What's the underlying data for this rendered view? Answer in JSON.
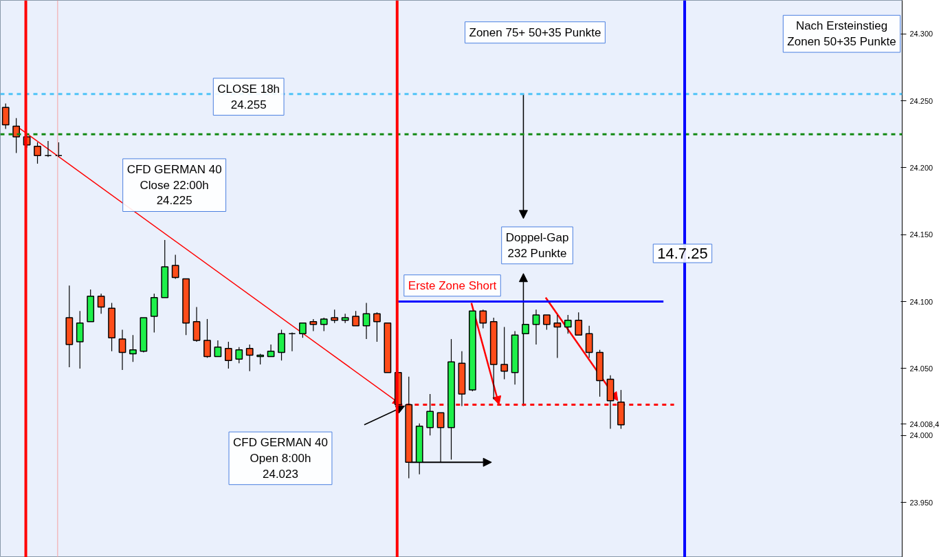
{
  "chart_data": {
    "type": "candlestick",
    "categories": [
      null,
      null,
      null,
      null,
      null,
      null,
      null,
      null,
      null,
      null,
      null,
      null,
      null,
      null,
      null,
      null,
      null,
      null,
      null,
      null,
      null,
      null,
      null,
      null,
      null,
      null,
      null,
      null,
      null,
      null,
      null,
      null,
      null,
      null,
      null,
      null,
      null,
      null,
      null,
      null,
      null,
      null,
      null,
      null,
      null,
      null,
      null,
      null,
      null,
      null,
      null,
      null,
      null,
      null,
      null,
      null,
      null,
      null,
      null,
      null,
      null,
      null,
      null,
      null,
      null,
      null,
      null,
      null,
      null,
      null,
      null,
      null,
      null,
      null,
      null,
      null,
      null,
      null,
      null,
      null,
      null,
      null,
      null,
      null,
      null
    ],
    "ohlc": [
      [
        24245,
        24248,
        24229,
        24232
      ],
      [
        24231,
        24237,
        24211,
        24223
      ],
      [
        24223,
        24224,
        24215,
        24217
      ],
      [
        24216,
        24219,
        24203,
        24209
      ],
      [
        24209,
        24220,
        24208,
        24209
      ],
      [
        24209,
        24219,
        24208,
        24209
      ],
      [
        24088,
        24112,
        24051,
        24068
      ],
      [
        24070,
        24093,
        24050,
        24084
      ],
      [
        24085,
        24109,
        24085,
        24104
      ],
      [
        24104,
        24106,
        24091,
        24096
      ],
      [
        24095,
        24099,
        24063,
        24073
      ],
      [
        24072,
        24079,
        24049,
        24062
      ],
      [
        24061,
        24075,
        24055,
        24064
      ],
      [
        24063,
        24088,
        24062,
        24088
      ],
      [
        24089,
        24106,
        24077,
        24103
      ],
      [
        24103,
        24146,
        24103,
        24126
      ],
      [
        24127,
        24135,
        24117,
        24118
      ],
      [
        24117,
        24117,
        24075,
        24084
      ],
      [
        24085,
        24096,
        24070,
        24071
      ],
      [
        24071,
        24087,
        24058,
        24059
      ],
      [
        24059,
        24071,
        24059,
        24066
      ],
      [
        24065,
        24070,
        24050,
        24056
      ],
      [
        24057,
        24066,
        24054,
        24064
      ],
      [
        24065,
        24068,
        24048,
        24060
      ],
      [
        24059,
        24061,
        24053,
        24060
      ],
      [
        24059,
        24068,
        24059,
        24063
      ],
      [
        24062,
        24079,
        24056,
        24076
      ],
      [
        24076,
        24077,
        24063,
        24076
      ],
      [
        24076,
        24084,
        24073,
        24084
      ],
      [
        24085,
        24087,
        24078,
        24083
      ],
      [
        24083,
        24088,
        24078,
        24087
      ],
      [
        24088,
        24094,
        24084,
        24086
      ],
      [
        24086,
        24091,
        24084,
        24088
      ],
      [
        24089,
        24093,
        24082,
        24082
      ],
      [
        24082,
        24099,
        24072,
        24091
      ],
      [
        24091,
        24092,
        24070,
        24085
      ],
      [
        24084,
        24084,
        24047,
        24047
      ],
      [
        24047,
        24047,
        24023,
        24023
      ],
      [
        24023,
        24044,
        23968,
        23980
      ],
      [
        23980,
        24009,
        23971,
        24007
      ],
      [
        24006,
        24031,
        24000,
        24018
      ],
      [
        24017,
        24017,
        23980,
        24006
      ],
      [
        24006,
        24072,
        23982,
        24055
      ],
      [
        24054,
        24063,
        24022,
        24031
      ],
      [
        24034,
        24093,
        24033,
        24093
      ],
      [
        24093,
        24094,
        24080,
        24084
      ],
      [
        24085,
        24088,
        24027,
        24053
      ],
      [
        24053,
        24081,
        24042,
        24048
      ],
      [
        24047,
        24078,
        24038,
        24075
      ],
      [
        24076,
        24083,
        24076,
        24083
      ],
      [
        24083,
        24094,
        24068,
        24090
      ],
      [
        24090,
        24090,
        24079,
        24083
      ],
      [
        24084,
        24090,
        24058,
        24081
      ],
      [
        24081,
        24090,
        24076,
        24086
      ],
      [
        24086,
        24092,
        24075,
        24075
      ],
      [
        24076,
        24082,
        24058,
        24062
      ],
      [
        24062,
        24064,
        24029,
        24041
      ],
      [
        24042,
        24045,
        24005,
        24026
      ],
      [
        24025,
        24034,
        24005,
        24008
      ],
      null,
      null,
      null,
      null,
      null,
      null,
      null,
      null,
      null,
      null,
      null,
      null,
      null,
      null,
      null,
      null,
      null,
      null,
      null,
      null,
      null,
      null,
      null,
      null,
      null,
      null
    ],
    "colors": [
      "#ff4d1a",
      "#ff4d1a",
      "#ff4d1a",
      "#ff4d1a",
      "#000000",
      "#000000",
      "#ff4d1a",
      "#1ef04a",
      "#1ef04a",
      "#ff4d1a",
      "#ff4d1a",
      "#ff4d1a",
      "#1ef04a",
      "#1ef04a",
      "#1ef04a",
      "#1ef04a",
      "#ff4d1a",
      "#ff4d1a",
      "#ff4d1a",
      "#ff4d1a",
      "#1ef04a",
      "#ff4d1a",
      "#1ef04a",
      "#ff4d1a",
      "#1ef04a",
      "#1ef04a",
      "#1ef04a",
      "#000000",
      "#1ef04a",
      "#ff4d1a",
      "#1ef04a",
      "#ff4d1a",
      "#1ef04a",
      "#ff4d1a",
      "#1ef04a",
      "#ff4d1a",
      "#ff4d1a",
      "#ff4d1a",
      "#ff4d1a",
      "#1ef04a",
      "#1ef04a",
      "#ff4d1a",
      "#1ef04a",
      "#ff4d1a",
      "#1ef04a",
      "#ff4d1a",
      "#ff4d1a",
      "#ff4d1a",
      "#1ef04a",
      "#1ef04a",
      "#1ef04a",
      "#ff4d1a",
      "#ff4d1a",
      "#1ef04a",
      "#ff4d1a",
      "#ff4d1a",
      "#ff4d1a",
      "#ff4d1a",
      "#ff4d1a",
      null,
      null,
      null,
      null,
      null,
      null,
      null,
      null,
      null,
      null,
      null,
      null,
      null,
      null,
      null,
      null,
      null,
      null,
      null,
      null,
      null,
      null,
      null,
      null,
      null,
      null
    ],
    "series": [
      {
        "type": "line",
        "color": "#0000ff",
        "values": [
          null,
          null,
          null,
          null,
          null,
          null,
          null,
          null,
          null,
          null,
          null,
          null,
          null,
          null,
          null,
          null,
          null,
          null,
          null,
          null,
          null,
          null,
          null,
          null,
          null,
          null,
          null,
          null,
          null,
          null,
          null,
          null,
          null,
          null,
          null,
          null,
          null,
          24100,
          null,
          null,
          null,
          null,
          null,
          null,
          null,
          null,
          null,
          null,
          null,
          null,
          null,
          null,
          null,
          null,
          null,
          null,
          null,
          null,
          null,
          null,
          null,
          null,
          24100,
          null,
          null,
          null,
          null,
          null,
          null,
          null,
          null,
          null,
          null,
          null,
          null,
          null,
          null,
          null,
          null,
          null,
          null,
          null,
          null,
          null,
          null
        ]
      },
      {
        "type": "line",
        "color": "#ff0000",
        "line_style": "dashed",
        "values": [
          null,
          null,
          null,
          null,
          null,
          null,
          null,
          null,
          null,
          null,
          null,
          null,
          null,
          null,
          null,
          null,
          null,
          null,
          null,
          null,
          null,
          null,
          null,
          null,
          null,
          null,
          null,
          null,
          null,
          null,
          null,
          null,
          null,
          null,
          null,
          null,
          null,
          24023,
          null,
          null,
          null,
          null,
          null,
          null,
          null,
          null,
          null,
          null,
          null,
          null,
          null,
          null,
          null,
          null,
          null,
          null,
          null,
          null,
          null,
          null,
          null,
          null,
          null,
          24023,
          null,
          null,
          null,
          null,
          null,
          null,
          null,
          null,
          null,
          null,
          null,
          null,
          null,
          null,
          null,
          null,
          null,
          null,
          null,
          null,
          null
        ]
      }
    ],
    "ref_lines": [
      {
        "axis": "y",
        "value": 24255,
        "color": "#4fc3f7",
        "line_style": "dashed"
      },
      {
        "axis": "y",
        "value": 24225,
        "color": "#138a13",
        "line_style": "dashed"
      }
    ],
    "annotations": [
      "Zonen 75+ 50+35 Punkte",
      "Nach Ersteinstieg\nZonen 50+35 Punkte",
      "CLOSE 18h\n24.255",
      "CFD GERMAN 40\nClose 22:00h\n24.225",
      "Doppel-Gap\n232 Punkte",
      "14.7.25",
      "Erste Zone Short",
      "CFD GERMAN 40\nOpen 8:00h\n24.023"
    ],
    "ylim": [
      23909,
      24325
    ],
    "yticks": [
      {
        "value": 23950,
        "label": "23.950"
      },
      {
        "value": 24000,
        "label": "24.000"
      },
      {
        "value": 24008.4,
        "label": "24.008,4"
      },
      {
        "value": 24050,
        "label": "24.050"
      },
      {
        "value": 24100,
        "label": "24.100"
      },
      {
        "value": 24150,
        "label": "24.150"
      },
      {
        "value": 24200,
        "label": "24.200"
      },
      {
        "value": 24250,
        "label": "24.250"
      },
      {
        "value": 24300,
        "label": "24.300"
      }
    ],
    "tick_labels": "y",
    "grid": false
  }
}
